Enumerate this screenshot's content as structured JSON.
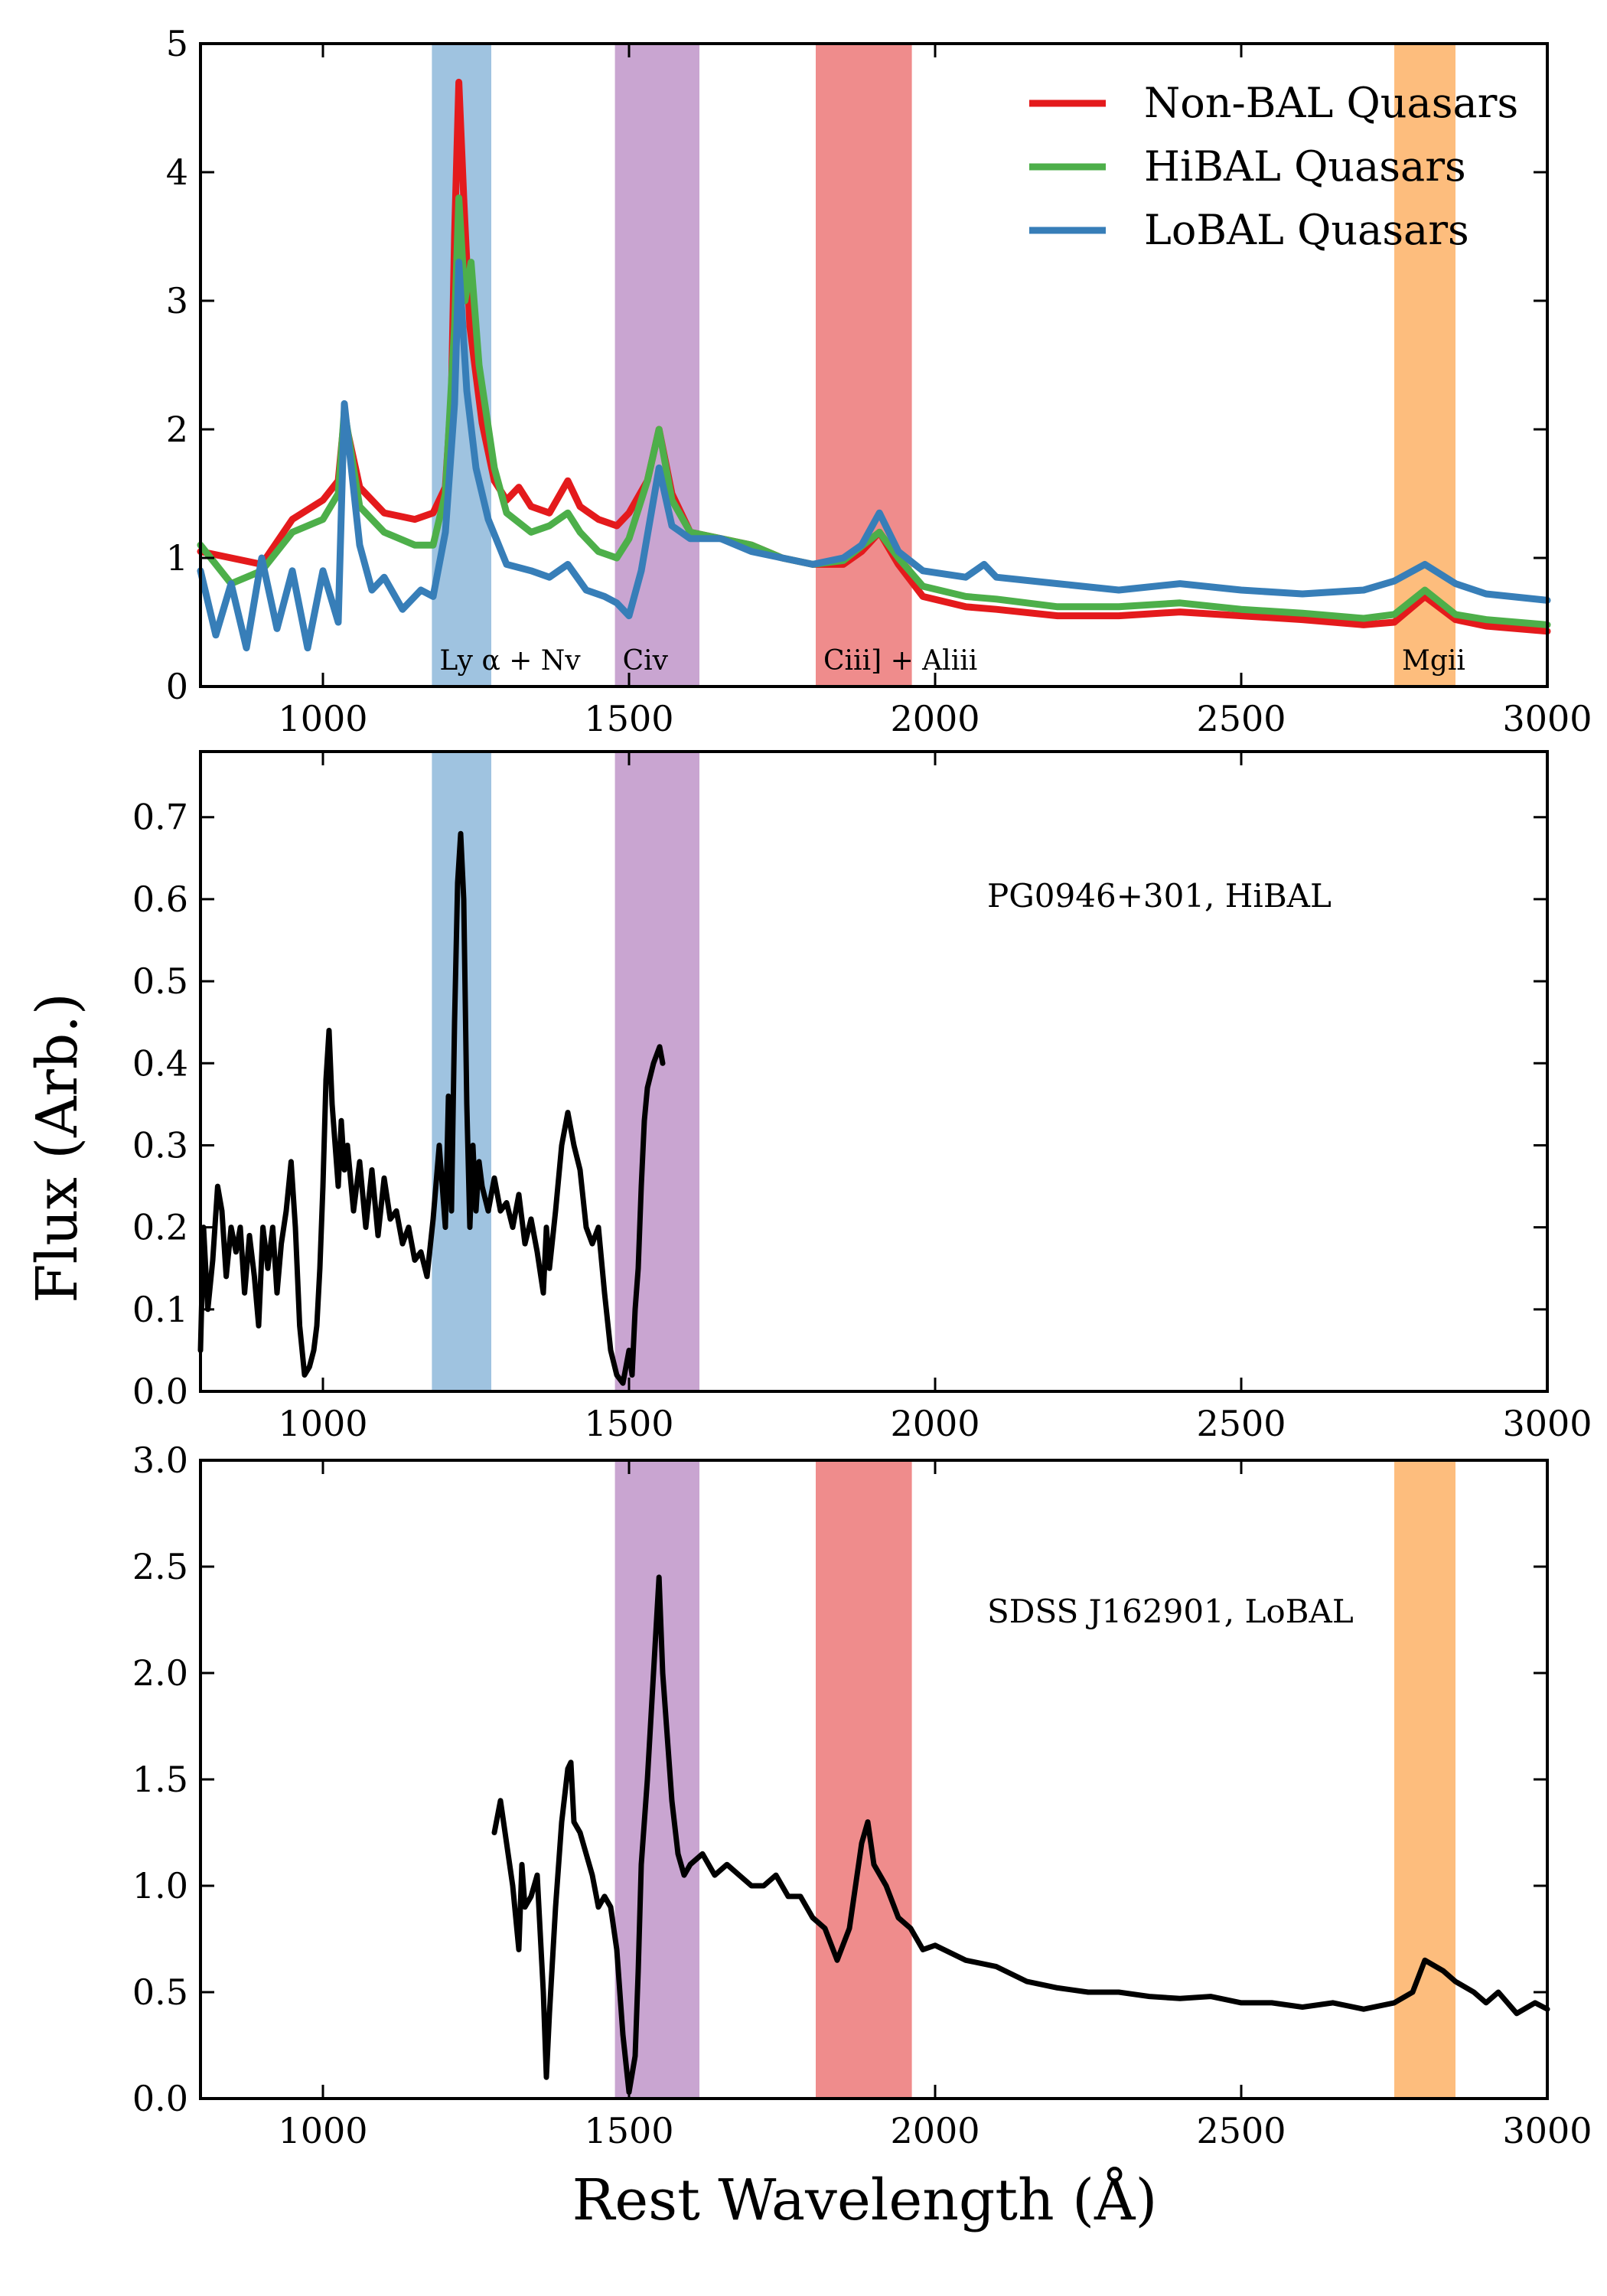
{
  "figure": {
    "xlabel": "Rest Wavelength (Å)",
    "ylabel": "Flux (Arb.)"
  },
  "bands": [
    {
      "label": "Ly α + Nv",
      "x": [
        1178,
        1275
      ],
      "color": "#9fc3e0"
    },
    {
      "label": "Civ",
      "x": [
        1477,
        1615
      ],
      "color": "#c9a5d1"
    },
    {
      "label": "Ciii] + Aliii",
      "x": [
        1805,
        1962
      ],
      "color": "#ef8c8c"
    },
    {
      "label": "Mgii",
      "x": [
        2750,
        2850
      ],
      "color": "#fdbd7d"
    }
  ],
  "chart_data": [
    {
      "type": "line",
      "xlabel": "",
      "ylabel": "",
      "xlim": [
        800,
        3000
      ],
      "ylim": [
        0,
        5
      ],
      "xticks": [
        1000,
        1500,
        2000,
        2500,
        3000
      ],
      "yticks": [
        0,
        1,
        2,
        3,
        4,
        5
      ],
      "legend_position": "top-right",
      "series": [
        {
          "name": "Non-BAL Quasars",
          "color": "#e41a1c",
          "x": [
            800,
            850,
            900,
            950,
            1000,
            1025,
            1035,
            1060,
            1100,
            1150,
            1180,
            1200,
            1210,
            1215,
            1222,
            1230,
            1240,
            1260,
            1280,
            1300,
            1320,
            1340,
            1370,
            1400,
            1420,
            1450,
            1480,
            1500,
            1530,
            1549,
            1570,
            1600,
            1650,
            1700,
            1750,
            1800,
            1850,
            1880,
            1909,
            1940,
            1980,
            2050,
            2100,
            2200,
            2300,
            2400,
            2500,
            2600,
            2700,
            2750,
            2800,
            2850,
            2900,
            3000
          ],
          "y": [
            1.05,
            1.0,
            0.95,
            1.3,
            1.45,
            1.6,
            2.1,
            1.55,
            1.35,
            1.3,
            1.35,
            1.55,
            2.3,
            3.5,
            4.7,
            3.8,
            2.8,
            2.05,
            1.6,
            1.45,
            1.55,
            1.4,
            1.35,
            1.6,
            1.4,
            1.3,
            1.25,
            1.35,
            1.6,
            2.0,
            1.5,
            1.2,
            1.15,
            1.1,
            1.0,
            0.95,
            0.95,
            1.05,
            1.2,
            0.95,
            0.7,
            0.62,
            0.6,
            0.55,
            0.55,
            0.58,
            0.55,
            0.52,
            0.48,
            0.5,
            0.7,
            0.52,
            0.47,
            0.43
          ]
        },
        {
          "name": "HiBAL Quasars",
          "color": "#4daf4a",
          "x": [
            800,
            850,
            900,
            950,
            1000,
            1025,
            1035,
            1060,
            1100,
            1150,
            1180,
            1200,
            1215,
            1222,
            1232,
            1242,
            1255,
            1280,
            1300,
            1340,
            1370,
            1400,
            1420,
            1450,
            1480,
            1500,
            1530,
            1549,
            1570,
            1600,
            1650,
            1700,
            1750,
            1800,
            1850,
            1909,
            1940,
            1980,
            2050,
            2100,
            2200,
            2300,
            2400,
            2500,
            2600,
            2700,
            2750,
            2800,
            2850,
            2900,
            3000
          ],
          "y": [
            1.1,
            0.8,
            0.9,
            1.2,
            1.3,
            1.5,
            2.15,
            1.4,
            1.2,
            1.1,
            1.1,
            1.5,
            2.8,
            3.8,
            3.0,
            3.3,
            2.5,
            1.7,
            1.35,
            1.2,
            1.25,
            1.35,
            1.2,
            1.05,
            1.0,
            1.15,
            1.6,
            2.0,
            1.45,
            1.2,
            1.15,
            1.1,
            1.0,
            0.95,
            0.98,
            1.2,
            1.0,
            0.78,
            0.7,
            0.68,
            0.62,
            0.62,
            0.65,
            0.6,
            0.57,
            0.53,
            0.56,
            0.75,
            0.56,
            0.52,
            0.48
          ]
        },
        {
          "name": "LoBAL Quasars",
          "color": "#377eb8",
          "x": [
            800,
            825,
            850,
            875,
            900,
            925,
            950,
            975,
            1000,
            1025,
            1035,
            1060,
            1080,
            1100,
            1130,
            1160,
            1180,
            1200,
            1215,
            1222,
            1235,
            1250,
            1270,
            1300,
            1340,
            1370,
            1400,
            1430,
            1460,
            1480,
            1500,
            1520,
            1549,
            1570,
            1600,
            1650,
            1700,
            1750,
            1800,
            1850,
            1880,
            1909,
            1940,
            1980,
            2050,
            2080,
            2100,
            2200,
            2300,
            2400,
            2500,
            2600,
            2700,
            2750,
            2800,
            2850,
            2900,
            3000
          ],
          "y": [
            0.9,
            0.4,
            0.8,
            0.3,
            1.0,
            0.45,
            0.9,
            0.3,
            0.9,
            0.5,
            2.2,
            1.1,
            0.75,
            0.85,
            0.6,
            0.75,
            0.7,
            1.2,
            2.2,
            3.3,
            2.3,
            1.7,
            1.3,
            0.95,
            0.9,
            0.85,
            0.95,
            0.75,
            0.7,
            0.65,
            0.55,
            0.9,
            1.7,
            1.25,
            1.15,
            1.15,
            1.05,
            1.0,
            0.95,
            1.0,
            1.1,
            1.35,
            1.05,
            0.9,
            0.85,
            0.95,
            0.85,
            0.8,
            0.75,
            0.8,
            0.75,
            0.72,
            0.75,
            0.82,
            0.95,
            0.8,
            0.72,
            0.67
          ]
        }
      ]
    },
    {
      "type": "line",
      "xlabel": "",
      "ylabel": "",
      "xlim": [
        800,
        3000
      ],
      "ylim": [
        0,
        0.78
      ],
      "xticks": [
        1000,
        1500,
        2000,
        2500,
        3000
      ],
      "yticks": [
        0.0,
        0.1,
        0.2,
        0.3,
        0.4,
        0.5,
        0.6,
        0.7
      ],
      "annotation": "PG0946+301, HiBAL",
      "series": [
        {
          "name": "",
          "color": "#000000",
          "x": [
            800,
            805,
            812,
            820,
            828,
            835,
            842,
            850,
            858,
            865,
            872,
            880,
            888,
            895,
            902,
            910,
            918,
            925,
            932,
            940,
            948,
            955,
            962,
            970,
            978,
            985,
            990,
            995,
            1000,
            1005,
            1010,
            1015,
            1020,
            1025,
            1030,
            1035,
            1040,
            1050,
            1060,
            1070,
            1080,
            1090,
            1100,
            1110,
            1120,
            1130,
            1140,
            1150,
            1160,
            1170,
            1180,
            1190,
            1200,
            1205,
            1210,
            1215,
            1220,
            1225,
            1230,
            1235,
            1240,
            1245,
            1250,
            1255,
            1260,
            1270,
            1280,
            1290,
            1300,
            1310,
            1320,
            1330,
            1340,
            1350,
            1360,
            1365,
            1370,
            1380,
            1390,
            1400,
            1410,
            1420,
            1430,
            1440,
            1450,
            1460,
            1470,
            1480,
            1490,
            1500,
            1505,
            1510,
            1515,
            1520,
            1525,
            1530,
            1540,
            1550,
            1555
          ],
          "y": [
            0.05,
            0.2,
            0.1,
            0.16,
            0.25,
            0.22,
            0.14,
            0.2,
            0.17,
            0.2,
            0.12,
            0.19,
            0.14,
            0.08,
            0.2,
            0.15,
            0.2,
            0.12,
            0.18,
            0.22,
            0.28,
            0.2,
            0.08,
            0.02,
            0.03,
            0.05,
            0.08,
            0.15,
            0.25,
            0.38,
            0.44,
            0.35,
            0.3,
            0.25,
            0.33,
            0.27,
            0.3,
            0.22,
            0.28,
            0.2,
            0.27,
            0.19,
            0.26,
            0.21,
            0.22,
            0.18,
            0.2,
            0.16,
            0.17,
            0.14,
            0.21,
            0.3,
            0.2,
            0.36,
            0.22,
            0.45,
            0.62,
            0.68,
            0.6,
            0.35,
            0.2,
            0.3,
            0.22,
            0.28,
            0.25,
            0.22,
            0.26,
            0.22,
            0.23,
            0.2,
            0.24,
            0.18,
            0.21,
            0.17,
            0.12,
            0.2,
            0.15,
            0.22,
            0.3,
            0.34,
            0.3,
            0.27,
            0.2,
            0.18,
            0.2,
            0.12,
            0.05,
            0.02,
            0.01,
            0.05,
            0.02,
            0.1,
            0.15,
            0.25,
            0.33,
            0.37,
            0.4,
            0.42,
            0.4
          ]
        }
      ]
    },
    {
      "type": "line",
      "xlabel": "",
      "ylabel": "",
      "xlim": [
        800,
        3000
      ],
      "ylim": [
        0,
        3.0
      ],
      "xticks": [
        1000,
        1500,
        2000,
        2500,
        3000
      ],
      "yticks": [
        0.0,
        0.5,
        1.0,
        1.5,
        2.0,
        2.5,
        3.0
      ],
      "annotation": "SDSS J162901, LoBAL",
      "series": [
        {
          "name": "",
          "color": "#000000",
          "x": [
            1280,
            1290,
            1300,
            1310,
            1320,
            1325,
            1330,
            1340,
            1350,
            1360,
            1365,
            1370,
            1380,
            1390,
            1400,
            1405,
            1410,
            1420,
            1430,
            1440,
            1450,
            1460,
            1470,
            1480,
            1490,
            1500,
            1510,
            1515,
            1520,
            1530,
            1540,
            1549,
            1555,
            1560,
            1570,
            1580,
            1590,
            1600,
            1620,
            1640,
            1660,
            1680,
            1700,
            1720,
            1740,
            1760,
            1780,
            1800,
            1820,
            1840,
            1860,
            1880,
            1890,
            1900,
            1920,
            1940,
            1960,
            1980,
            2000,
            2050,
            2100,
            2150,
            2200,
            2250,
            2300,
            2350,
            2400,
            2450,
            2500,
            2550,
            2600,
            2650,
            2700,
            2750,
            2780,
            2800,
            2830,
            2850,
            2880,
            2900,
            2920,
            2950,
            2980,
            3000
          ],
          "y": [
            1.25,
            1.4,
            1.2,
            1.0,
            0.7,
            1.1,
            0.9,
            0.95,
            1.05,
            0.5,
            0.1,
            0.4,
            0.9,
            1.3,
            1.55,
            1.58,
            1.3,
            1.25,
            1.15,
            1.05,
            0.9,
            0.95,
            0.9,
            0.7,
            0.3,
            0.03,
            0.2,
            0.6,
            1.1,
            1.5,
            2.0,
            2.45,
            2.0,
            1.8,
            1.4,
            1.15,
            1.05,
            1.1,
            1.15,
            1.05,
            1.1,
            1.05,
            1.0,
            1.0,
            1.05,
            0.95,
            0.95,
            0.85,
            0.8,
            0.65,
            0.8,
            1.2,
            1.3,
            1.1,
            1.0,
            0.85,
            0.8,
            0.7,
            0.72,
            0.65,
            0.62,
            0.55,
            0.52,
            0.5,
            0.5,
            0.48,
            0.47,
            0.48,
            0.45,
            0.45,
            0.43,
            0.45,
            0.42,
            0.45,
            0.5,
            0.65,
            0.6,
            0.55,
            0.5,
            0.45,
            0.5,
            0.4,
            0.45,
            0.42
          ]
        }
      ]
    }
  ]
}
